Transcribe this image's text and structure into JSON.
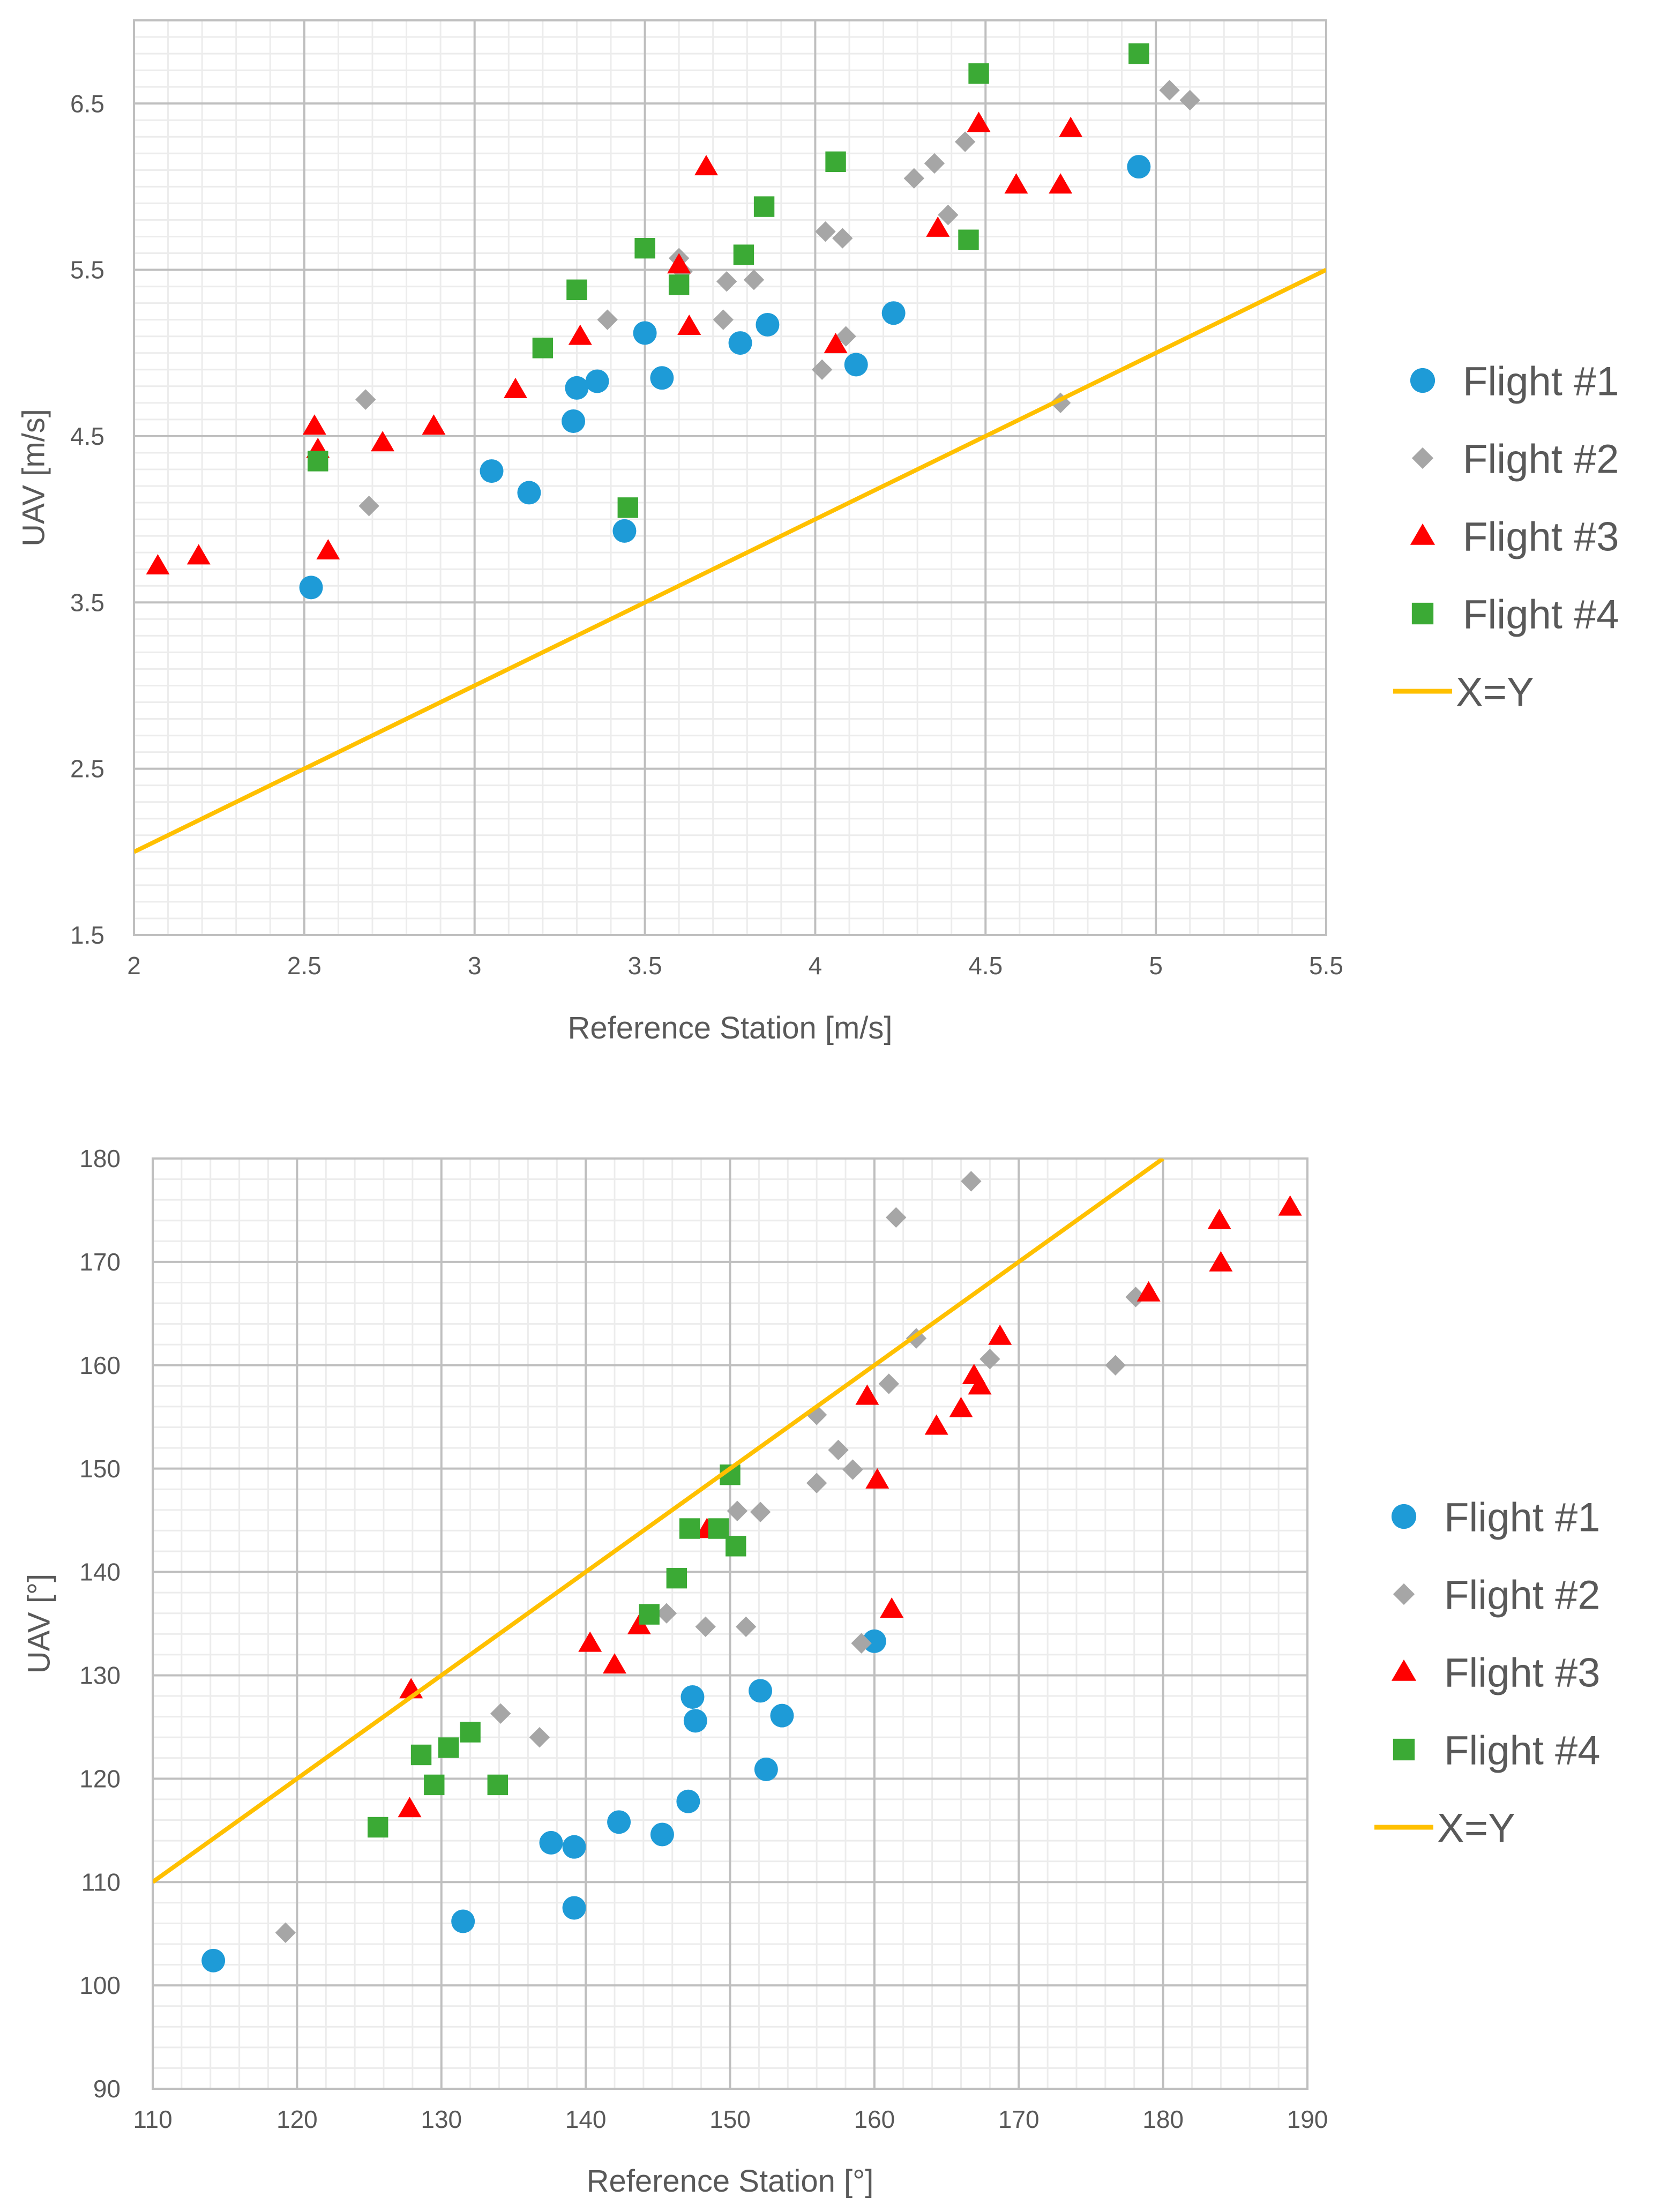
{
  "charts": [
    {
      "id": "wind-speed",
      "chart_data": {
        "type": "scatter",
        "title": "",
        "xlabel": "Reference Station [m/s]",
        "ylabel": "UAV [m/s]",
        "xlim": [
          2,
          5.5
        ],
        "ylim": [
          1.5,
          7.0
        ],
        "xticks": [
          2,
          2.5,
          3,
          3.5,
          4,
          4.5,
          5,
          5.5
        ],
        "xtick_labels": [
          "2",
          "2.5",
          "3",
          "3.5",
          "4",
          "4.5",
          "5",
          "5.5"
        ],
        "yticks": [
          1.5,
          2.5,
          3.5,
          4.5,
          5.5,
          6.5
        ],
        "ytick_labels": [
          "1.5",
          "2.5",
          "3.5",
          "4.5",
          "5.5",
          "6.5"
        ],
        "minor_x_step": 0.1,
        "minor_y_step": 0.1,
        "grid": true,
        "legend_position": "right",
        "series": [
          {
            "name": "Flight #1",
            "marker": "circle",
            "color": "#1E9BD7",
            "points": [
              [
                2.52,
                3.59
              ],
              [
                3.05,
                4.29
              ],
              [
                3.16,
                4.16
              ],
              [
                3.29,
                4.59
              ],
              [
                3.3,
                4.79
              ],
              [
                3.36,
                4.83
              ],
              [
                3.44,
                3.93
              ],
              [
                3.5,
                5.12
              ],
              [
                3.55,
                4.85
              ],
              [
                3.78,
                5.06
              ],
              [
                3.86,
                5.17
              ],
              [
                4.12,
                4.93
              ],
              [
                4.23,
                5.24
              ],
              [
                4.95,
                6.12
              ]
            ]
          },
          {
            "name": "Flight #2",
            "marker": "diamond",
            "color": "#A6A6A6",
            "points": [
              [
                2.68,
                4.72
              ],
              [
                2.69,
                4.08
              ],
              [
                3.39,
                5.2
              ],
              [
                3.6,
                5.57
              ],
              [
                3.61,
                5.49
              ],
              [
                3.73,
                5.2
              ],
              [
                3.74,
                5.43
              ],
              [
                3.82,
                5.44
              ],
              [
                4.02,
                4.9
              ],
              [
                4.03,
                5.73
              ],
              [
                4.08,
                5.69
              ],
              [
                4.09,
                5.1
              ],
              [
                4.29,
                6.05
              ],
              [
                4.35,
                6.14
              ],
              [
                4.39,
                5.83
              ],
              [
                4.44,
                6.27
              ],
              [
                4.72,
                4.7
              ],
              [
                5.04,
                6.58
              ],
              [
                5.1,
                6.52
              ]
            ]
          },
          {
            "name": "Flight #3",
            "marker": "triangle",
            "color": "#FF0000",
            "points": [
              [
                2.07,
                3.72
              ],
              [
                2.19,
                3.78
              ],
              [
                2.53,
                4.56
              ],
              [
                2.54,
                4.42
              ],
              [
                2.57,
                3.81
              ],
              [
                2.73,
                4.46
              ],
              [
                2.88,
                4.56
              ],
              [
                3.12,
                4.78
              ],
              [
                3.31,
                5.1
              ],
              [
                3.6,
                5.53
              ],
              [
                3.63,
                5.16
              ],
              [
                3.68,
                6.12
              ],
              [
                4.06,
                5.05
              ],
              [
                4.36,
                5.75
              ],
              [
                4.48,
                6.38
              ],
              [
                4.59,
                6.01
              ],
              [
                4.72,
                6.01
              ],
              [
                4.75,
                6.35
              ]
            ]
          },
          {
            "name": "Flight #4",
            "marker": "square",
            "color": "#3BAA35",
            "points": [
              [
                2.54,
                4.35
              ],
              [
                3.2,
                5.03
              ],
              [
                3.3,
                5.38
              ],
              [
                3.45,
                4.07
              ],
              [
                3.5,
                5.63
              ],
              [
                3.6,
                5.41
              ],
              [
                3.79,
                5.59
              ],
              [
                3.85,
                5.88
              ],
              [
                4.06,
                6.15
              ],
              [
                4.45,
                5.68
              ],
              [
                4.48,
                6.68
              ],
              [
                4.95,
                6.8
              ]
            ]
          },
          {
            "name": "X=Y",
            "marker": "line",
            "color": "#FFC000",
            "points": [
              [
                2,
                2
              ],
              [
                5.5,
                5.5
              ]
            ]
          }
        ]
      }
    },
    {
      "id": "wind-direction",
      "chart_data": {
        "type": "scatter",
        "title": "",
        "xlabel": "Reference Station [°]",
        "ylabel": "UAV [°]",
        "xlim": [
          110,
          190
        ],
        "ylim": [
          90,
          180
        ],
        "xticks": [
          110,
          120,
          130,
          140,
          150,
          160,
          170,
          180,
          190
        ],
        "xtick_labels": [
          "110",
          "120",
          "130",
          "140",
          "150",
          "160",
          "170",
          "180",
          "190"
        ],
        "yticks": [
          90,
          100,
          110,
          120,
          130,
          140,
          150,
          160,
          170,
          180
        ],
        "ytick_labels": [
          "90",
          "100",
          "110",
          "120",
          "130",
          "140",
          "150",
          "160",
          "170",
          "180"
        ],
        "minor_x_step": 2,
        "minor_y_step": 2,
        "grid": true,
        "legend_position": "right",
        "series": [
          {
            "name": "Flight #1",
            "marker": "circle",
            "color": "#1E9BD7",
            "points": [
              [
                114.2,
                102.4
              ],
              [
                131.5,
                106.2
              ],
              [
                137.6,
                113.8
              ],
              [
                139.2,
                107.5
              ],
              [
                139.2,
                113.4
              ],
              [
                142.3,
                115.8
              ],
              [
                145.3,
                114.6
              ],
              [
                147.1,
                117.8
              ],
              [
                147.4,
                127.9
              ],
              [
                147.6,
                125.6
              ],
              [
                152.1,
                128.5
              ],
              [
                152.5,
                120.9
              ],
              [
                153.6,
                126.1
              ],
              [
                160.0,
                133.3
              ]
            ]
          },
          {
            "name": "Flight #2",
            "marker": "diamond",
            "color": "#A6A6A6",
            "points": [
              [
                119.2,
                105.1
              ],
              [
                134.1,
                126.3
              ],
              [
                136.8,
                124.0
              ],
              [
                145.6,
                136.0
              ],
              [
                148.3,
                134.7
              ],
              [
                150.5,
                145.9
              ],
              [
                151.1,
                134.7
              ],
              [
                152.1,
                145.8
              ],
              [
                156.0,
                148.6
              ],
              [
                156.0,
                155.2
              ],
              [
                157.5,
                151.8
              ],
              [
                158.5,
                149.9
              ],
              [
                159.1,
                133.1
              ],
              [
                161.0,
                158.2
              ],
              [
                161.5,
                174.3
              ],
              [
                162.9,
                162.6
              ],
              [
                166.7,
                177.8
              ],
              [
                168.0,
                160.6
              ],
              [
                176.7,
                160.0
              ],
              [
                178.1,
                166.6
              ]
            ]
          },
          {
            "name": "Flight #3",
            "marker": "triangle",
            "color": "#FF0000",
            "points": [
              [
                127.8,
                117.1
              ],
              [
                127.9,
                128.6
              ],
              [
                140.3,
                133.1
              ],
              [
                142.0,
                131.0
              ],
              [
                143.7,
                134.8
              ],
              [
                148.4,
                144.1
              ],
              [
                159.5,
                157.0
              ],
              [
                160.2,
                148.9
              ],
              [
                161.2,
                136.4
              ],
              [
                164.3,
                154.1
              ],
              [
                166.0,
                155.8
              ],
              [
                166.9,
                159.0
              ],
              [
                167.3,
                158.0
              ],
              [
                168.7,
                162.8
              ],
              [
                179.0,
                167.0
              ],
              [
                183.9,
                174.0
              ],
              [
                184.0,
                169.9
              ],
              [
                188.8,
                175.3
              ]
            ]
          },
          {
            "name": "Flight #4",
            "marker": "square",
            "color": "#3BAA35",
            "points": [
              [
                125.6,
                115.3
              ],
              [
                128.6,
                122.3
              ],
              [
                129.5,
                119.4
              ],
              [
                130.5,
                123.0
              ],
              [
                132.0,
                124.5
              ],
              [
                133.9,
                119.4
              ],
              [
                144.4,
                135.9
              ],
              [
                146.3,
                139.4
              ],
              [
                147.2,
                144.2
              ],
              [
                149.2,
                144.2
              ],
              [
                150.0,
                149.4
              ],
              [
                150.4,
                142.5
              ]
            ]
          },
          {
            "name": "X=Y",
            "marker": "line",
            "color": "#FFC000",
            "points": [
              [
                110,
                110
              ],
              [
                180,
                180
              ]
            ]
          }
        ]
      }
    }
  ]
}
